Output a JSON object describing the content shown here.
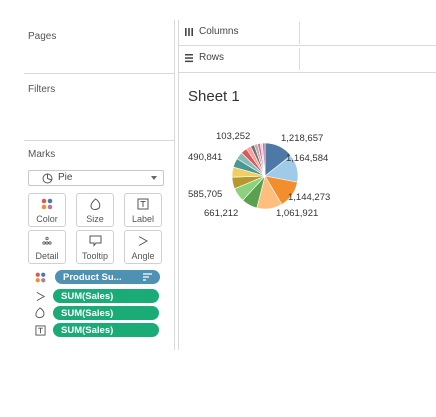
{
  "left_panel": {
    "pages_title": "Pages",
    "filters_title": "Filters",
    "marks_title": "Marks",
    "mark_type": "Pie",
    "mark_buttons": [
      {
        "label": "Color",
        "icon": "color-dots-icon"
      },
      {
        "label": "Size",
        "icon": "size-icon"
      },
      {
        "label": "Label",
        "icon": "label-icon"
      },
      {
        "label": "Detail",
        "icon": "detail-icon"
      },
      {
        "label": "Tooltip",
        "icon": "tooltip-icon"
      },
      {
        "label": "Angle",
        "icon": "angle-icon"
      }
    ],
    "mark_pills": [
      {
        "label": "Product Su...",
        "icon": "color-dots-icon",
        "color": "#4e91b3"
      },
      {
        "label": "SUM(Sales)",
        "icon": "angle-icon",
        "color": "#1aab77"
      },
      {
        "label": "SUM(Sales)",
        "icon": "size-icon",
        "color": "#1aab77"
      },
      {
        "label": "SUM(Sales)",
        "icon": "label-icon",
        "color": "#1aab77"
      }
    ]
  },
  "shelves": {
    "columns_label": "Columns",
    "rows_label": "Rows"
  },
  "sheet": {
    "title": "Sheet 1"
  },
  "chart_data": {
    "type": "pie",
    "labels": [
      "1,218,657",
      "1,164,584",
      "1,144,273",
      "1,061,921",
      "661,212",
      "585,705",
      "490,841",
      "103,252"
    ],
    "values": [
      1218657,
      1164584,
      1144273,
      1061921,
      661212,
      585705,
      490841,
      103252
    ],
    "slice_colors": [
      "#4e79a7",
      "#a0cbe8",
      "#f28e2b",
      "#ffbe7d",
      "#59a14f",
      "#8cd17d",
      "#b6992d",
      "#f1ce63",
      "#499894",
      "#86bcb6",
      "#e15759",
      "#ff9d9a",
      "#79706e",
      "#bab0ac",
      "#d37295",
      "#fabfd2",
      "#b07aa1"
    ]
  }
}
